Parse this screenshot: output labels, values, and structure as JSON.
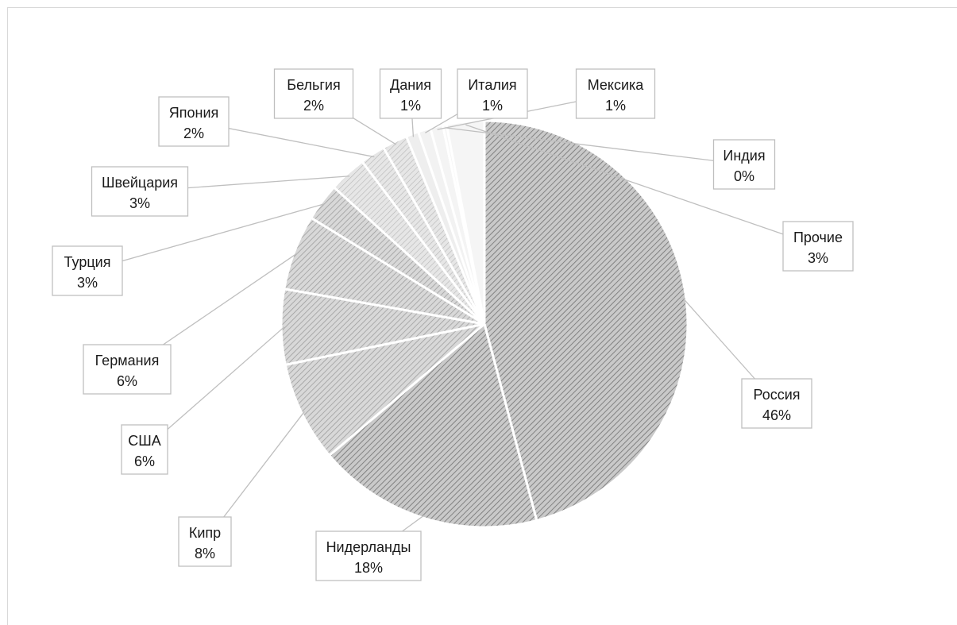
{
  "chart_data": {
    "type": "pie",
    "title": "",
    "slices": [
      {
        "label": "Россия",
        "value": 46,
        "display": "46%"
      },
      {
        "label": "Нидерланды",
        "value": 18,
        "display": "18%"
      },
      {
        "label": "Кипр",
        "value": 8,
        "display": "8%"
      },
      {
        "label": "США",
        "value": 6,
        "display": "6%"
      },
      {
        "label": "Германия",
        "value": 6,
        "display": "6%"
      },
      {
        "label": "Турция",
        "value": 3,
        "display": "3%"
      },
      {
        "label": "Швейцария",
        "value": 3,
        "display": "3%"
      },
      {
        "label": "Япония",
        "value": 2,
        "display": "2%"
      },
      {
        "label": "Бельгия",
        "value": 2,
        "display": "2%"
      },
      {
        "label": "Дания",
        "value": 1,
        "display": "1%"
      },
      {
        "label": "Италия",
        "value": 1,
        "display": "1%"
      },
      {
        "label": "Мексика",
        "value": 1,
        "display": "1%"
      },
      {
        "label": "Индия",
        "value": 0.3,
        "display": "0%"
      },
      {
        "label": "Прочие",
        "value": 3,
        "display": "3%"
      }
    ],
    "legend": "none",
    "data_labels": "category and percentage with leader lines"
  }
}
